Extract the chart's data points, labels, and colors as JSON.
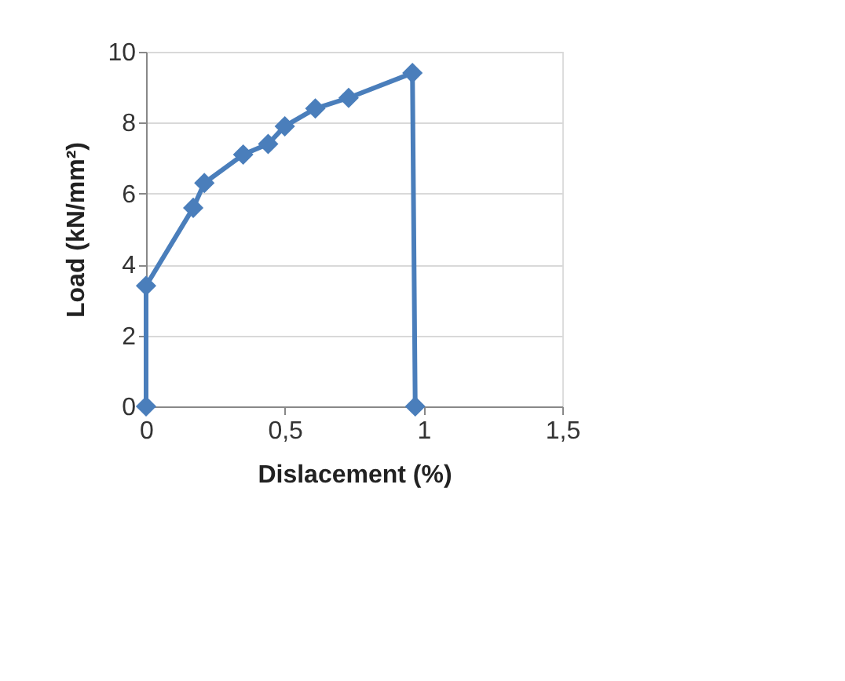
{
  "chart_data": {
    "type": "line",
    "xlabel": "Dislacement (%)",
    "ylabel": "Load (kN/mm²)",
    "x": [
      0,
      0,
      0.17,
      0.21,
      0.35,
      0.44,
      0.5,
      0.61,
      0.73,
      0.96,
      0.97
    ],
    "series": [
      {
        "color": "#4a7ebb",
        "values": [
          0,
          3.4,
          5.6,
          6.3,
          7.1,
          7.4,
          7.9,
          8.4,
          8.7,
          9.4,
          0
        ]
      }
    ],
    "xlim": [
      0,
      1.5
    ],
    "xticks": [
      0,
      {
        "value": 0.5,
        "label": "0,5"
      },
      1,
      {
        "value": 1.5,
        "label": "1,5"
      }
    ],
    "ylim": [
      0,
      10
    ],
    "yticks": [
      0,
      2,
      4,
      6,
      8,
      10
    ],
    "grid": "y",
    "marker": "diamond",
    "line_style": "solid"
  }
}
